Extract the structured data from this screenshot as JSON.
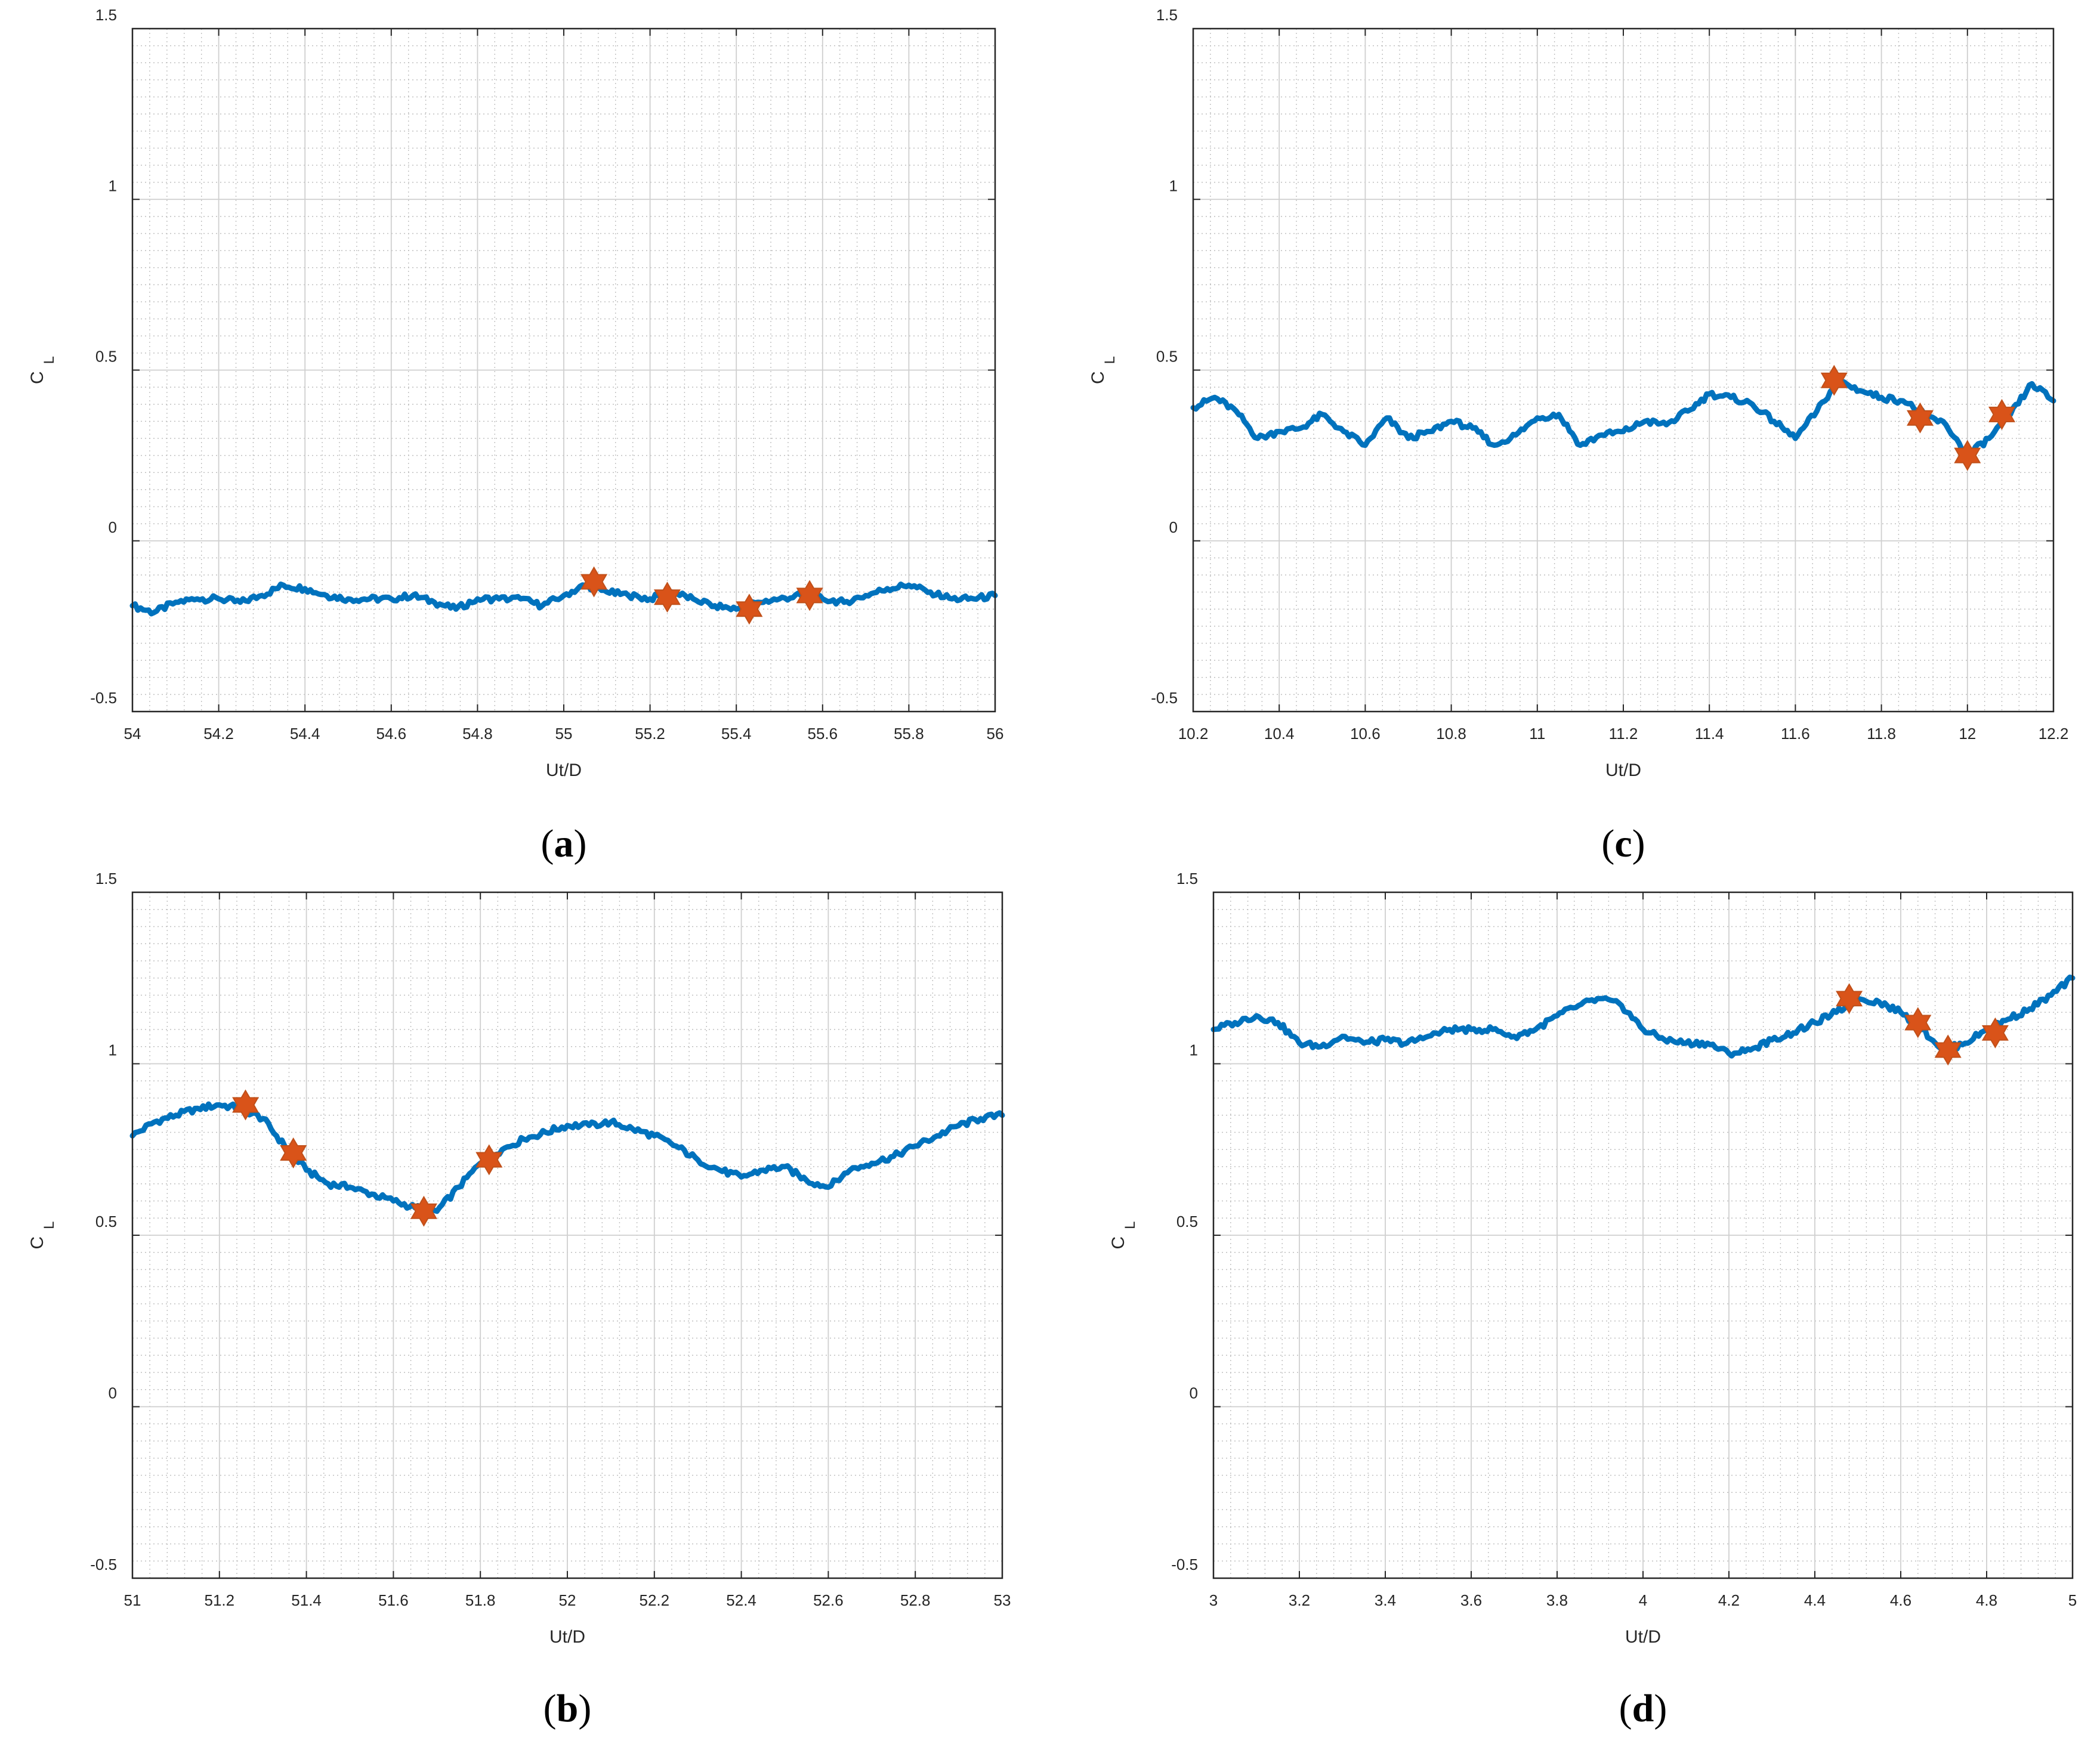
{
  "figure": {
    "colors": {
      "series": "#0072BD",
      "marker": "#D95319",
      "marker_edge": "#C0501A",
      "grid_major": "#cfcfcf",
      "grid_minor": "#bfbfbf",
      "axis": "#262626"
    },
    "marker_symbol": "hexagram"
  },
  "chart_data": [
    {
      "type": "line",
      "panel": "a",
      "panel_label": "a",
      "xlabel": "Ut/D",
      "ylabel": "C",
      "ylabel_sub": "L",
      "xlim": [
        54,
        56
      ],
      "ylim": [
        -0.5,
        1.5
      ],
      "xticks": [
        54,
        54.2,
        54.4,
        54.6,
        54.8,
        55,
        55.2,
        55.4,
        55.6,
        55.8,
        56
      ],
      "xtick_labels": [
        "54",
        "54.2",
        "54.4",
        "54.6",
        "54.8",
        "55",
        "55.2",
        "55.4",
        "55.6",
        "55.8",
        "56"
      ],
      "yticks": [
        -0.5,
        0,
        0.5,
        1,
        1.5
      ],
      "ytick_labels": [
        "-0.5",
        "0",
        "0.5",
        "1",
        "1.5"
      ],
      "grid": true,
      "minor_grid": true,
      "series": [
        {
          "name": "C_L",
          "x": [
            54,
            54.05,
            54.1,
            54.15,
            54.2,
            54.25,
            54.3,
            54.35,
            54.4,
            54.45,
            54.5,
            54.55,
            54.6,
            54.65,
            54.7,
            54.75,
            54.8,
            54.85,
            54.9,
            54.95,
            55,
            55.05,
            55.1,
            55.15,
            55.2,
            55.25,
            55.3,
            55.35,
            55.4,
            55.45,
            55.5,
            55.55,
            55.6,
            55.65,
            55.7,
            55.75,
            55.8,
            55.85,
            55.9,
            55.95,
            56
          ],
          "values": [
            -0.19,
            -0.21,
            -0.18,
            -0.17,
            -0.17,
            -0.18,
            -0.16,
            -0.13,
            -0.14,
            -0.16,
            -0.17,
            -0.17,
            -0.17,
            -0.16,
            -0.18,
            -0.2,
            -0.17,
            -0.17,
            -0.17,
            -0.19,
            -0.16,
            -0.13,
            -0.15,
            -0.16,
            -0.17,
            -0.15,
            -0.17,
            -0.19,
            -0.2,
            -0.18,
            -0.17,
            -0.16,
            -0.17,
            -0.18,
            -0.16,
            -0.14,
            -0.13,
            -0.15,
            -0.17,
            -0.17,
            -0.16
          ]
        }
      ],
      "markers": {
        "x": [
          55.07,
          55.24,
          55.43,
          55.57
        ],
        "values": [
          -0.12,
          -0.165,
          -0.2,
          -0.16
        ]
      }
    },
    {
      "type": "line",
      "panel": "b",
      "panel_label": "b",
      "xlabel": "Ut/D",
      "ylabel": "C",
      "ylabel_sub": "L",
      "xlim": [
        51,
        53
      ],
      "ylim": [
        -0.5,
        1.5
      ],
      "xticks": [
        51,
        51.2,
        51.4,
        51.6,
        51.8,
        52,
        52.2,
        52.4,
        52.6,
        52.8,
        53
      ],
      "xtick_labels": [
        "51",
        "51.2",
        "51.4",
        "51.6",
        "51.8",
        "52",
        "52.2",
        "52.4",
        "52.6",
        "52.8",
        "53"
      ],
      "yticks": [
        -0.5,
        0,
        0.5,
        1,
        1.5
      ],
      "ytick_labels": [
        "-0.5",
        "0",
        "0.5",
        "1",
        "1.5"
      ],
      "grid": true,
      "minor_grid": true,
      "series": [
        {
          "name": "C_L",
          "x": [
            51,
            51.05,
            51.1,
            51.15,
            51.2,
            51.25,
            51.3,
            51.35,
            51.4,
            51.45,
            51.5,
            51.55,
            51.6,
            51.65,
            51.7,
            51.75,
            51.8,
            51.85,
            51.9,
            51.95,
            52,
            52.05,
            52.1,
            52.15,
            52.2,
            52.25,
            52.3,
            52.35,
            52.4,
            52.45,
            52.5,
            52.55,
            52.6,
            52.65,
            52.7,
            52.75,
            52.8,
            52.85,
            52.9,
            52.95,
            53
          ],
          "values": [
            0.79,
            0.83,
            0.85,
            0.87,
            0.88,
            0.87,
            0.84,
            0.76,
            0.69,
            0.65,
            0.64,
            0.62,
            0.6,
            0.58,
            0.57,
            0.64,
            0.71,
            0.75,
            0.78,
            0.8,
            0.82,
            0.82,
            0.83,
            0.81,
            0.79,
            0.76,
            0.72,
            0.69,
            0.67,
            0.69,
            0.7,
            0.66,
            0.64,
            0.69,
            0.71,
            0.73,
            0.76,
            0.79,
            0.82,
            0.84,
            0.85
          ]
        }
      ],
      "markers": {
        "x": [
          51.26,
          51.37,
          51.67,
          51.82
        ],
        "values": [
          0.88,
          0.74,
          0.57,
          0.72
        ]
      }
    },
    {
      "type": "line",
      "panel": "c",
      "panel_label": "c",
      "xlabel": "Ut/D",
      "ylabel": "C",
      "ylabel_sub": "L",
      "xlim": [
        10.2,
        12.2
      ],
      "ylim": [
        -0.5,
        1.5
      ],
      "xticks": [
        10.2,
        10.4,
        10.6,
        10.8,
        11,
        11.2,
        11.4,
        11.6,
        11.8,
        12,
        12.2
      ],
      "xtick_labels": [
        "10.2",
        "10.4",
        "10.6",
        "10.8",
        "11",
        "11.2",
        "11.4",
        "11.6",
        "11.8",
        "12",
        "12.2"
      ],
      "yticks": [
        -0.5,
        0,
        0.5,
        1,
        1.5
      ],
      "ytick_labels": [
        "-0.5",
        "0",
        "0.5",
        "1",
        "1.5"
      ],
      "grid": true,
      "minor_grid": true,
      "series": [
        {
          "name": "C_L",
          "x": [
            10.2,
            10.25,
            10.3,
            10.35,
            10.4,
            10.45,
            10.5,
            10.55,
            10.6,
            10.65,
            10.7,
            10.75,
            10.8,
            10.85,
            10.9,
            10.95,
            11,
            11.05,
            11.1,
            11.15,
            11.2,
            11.25,
            11.3,
            11.35,
            11.4,
            11.45,
            11.5,
            11.55,
            11.6,
            11.65,
            11.7,
            11.75,
            11.8,
            11.85,
            11.9,
            11.95,
            12,
            12.05,
            12.1,
            12.15,
            12.2
          ],
          "values": [
            0.39,
            0.42,
            0.38,
            0.3,
            0.32,
            0.33,
            0.37,
            0.32,
            0.28,
            0.36,
            0.3,
            0.32,
            0.35,
            0.33,
            0.28,
            0.31,
            0.36,
            0.37,
            0.28,
            0.31,
            0.32,
            0.35,
            0.34,
            0.38,
            0.43,
            0.42,
            0.4,
            0.35,
            0.3,
            0.38,
            0.47,
            0.44,
            0.42,
            0.41,
            0.37,
            0.34,
            0.25,
            0.3,
            0.37,
            0.46,
            0.41
          ]
        }
      ],
      "markers": {
        "x": [
          11.69,
          11.89,
          12.0,
          12.08
        ],
        "values": [
          0.47,
          0.36,
          0.25,
          0.37
        ]
      }
    },
    {
      "type": "line",
      "panel": "d",
      "panel_label": "d",
      "xlabel": "Ut/D",
      "ylabel": "C",
      "ylabel_sub": "L",
      "xlim": [
        3,
        5
      ],
      "ylim": [
        -0.5,
        1.5
      ],
      "xticks": [
        3,
        3.2,
        3.4,
        3.6,
        3.8,
        4,
        4.2,
        4.4,
        4.6,
        4.8,
        5
      ],
      "xtick_labels": [
        "3",
        "3.2",
        "3.4",
        "3.6",
        "3.8",
        "4",
        "4.2",
        "4.4",
        "4.6",
        "4.8",
        "5"
      ],
      "yticks": [
        -0.5,
        0,
        0.5,
        1,
        1.5
      ],
      "ytick_labels": [
        "-0.5",
        "0",
        "0.5",
        "1",
        "1.5"
      ],
      "grid": true,
      "minor_grid": true,
      "series": [
        {
          "name": "C_L",
          "x": [
            3,
            3.05,
            3.1,
            3.15,
            3.2,
            3.25,
            3.3,
            3.35,
            3.4,
            3.45,
            3.5,
            3.55,
            3.6,
            3.65,
            3.7,
            3.75,
            3.8,
            3.85,
            3.9,
            3.95,
            4,
            4.05,
            4.1,
            4.15,
            4.2,
            4.25,
            4.3,
            4.35,
            4.4,
            4.45,
            4.5,
            4.55,
            4.6,
            4.65,
            4.7,
            4.75,
            4.8,
            4.85,
            4.9,
            4.95,
            5
          ],
          "values": [
            1.1,
            1.12,
            1.14,
            1.12,
            1.06,
            1.05,
            1.08,
            1.06,
            1.07,
            1.06,
            1.08,
            1.1,
            1.1,
            1.1,
            1.08,
            1.1,
            1.14,
            1.17,
            1.19,
            1.17,
            1.1,
            1.07,
            1.06,
            1.06,
            1.03,
            1.04,
            1.07,
            1.09,
            1.12,
            1.15,
            1.19,
            1.18,
            1.15,
            1.1,
            1.04,
            1.06,
            1.1,
            1.13,
            1.16,
            1.2,
            1.25
          ]
        }
      ],
      "markers": {
        "x": [
          4.48,
          4.64,
          4.71,
          4.82
        ],
        "values": [
          1.19,
          1.12,
          1.04,
          1.09
        ]
      }
    }
  ]
}
